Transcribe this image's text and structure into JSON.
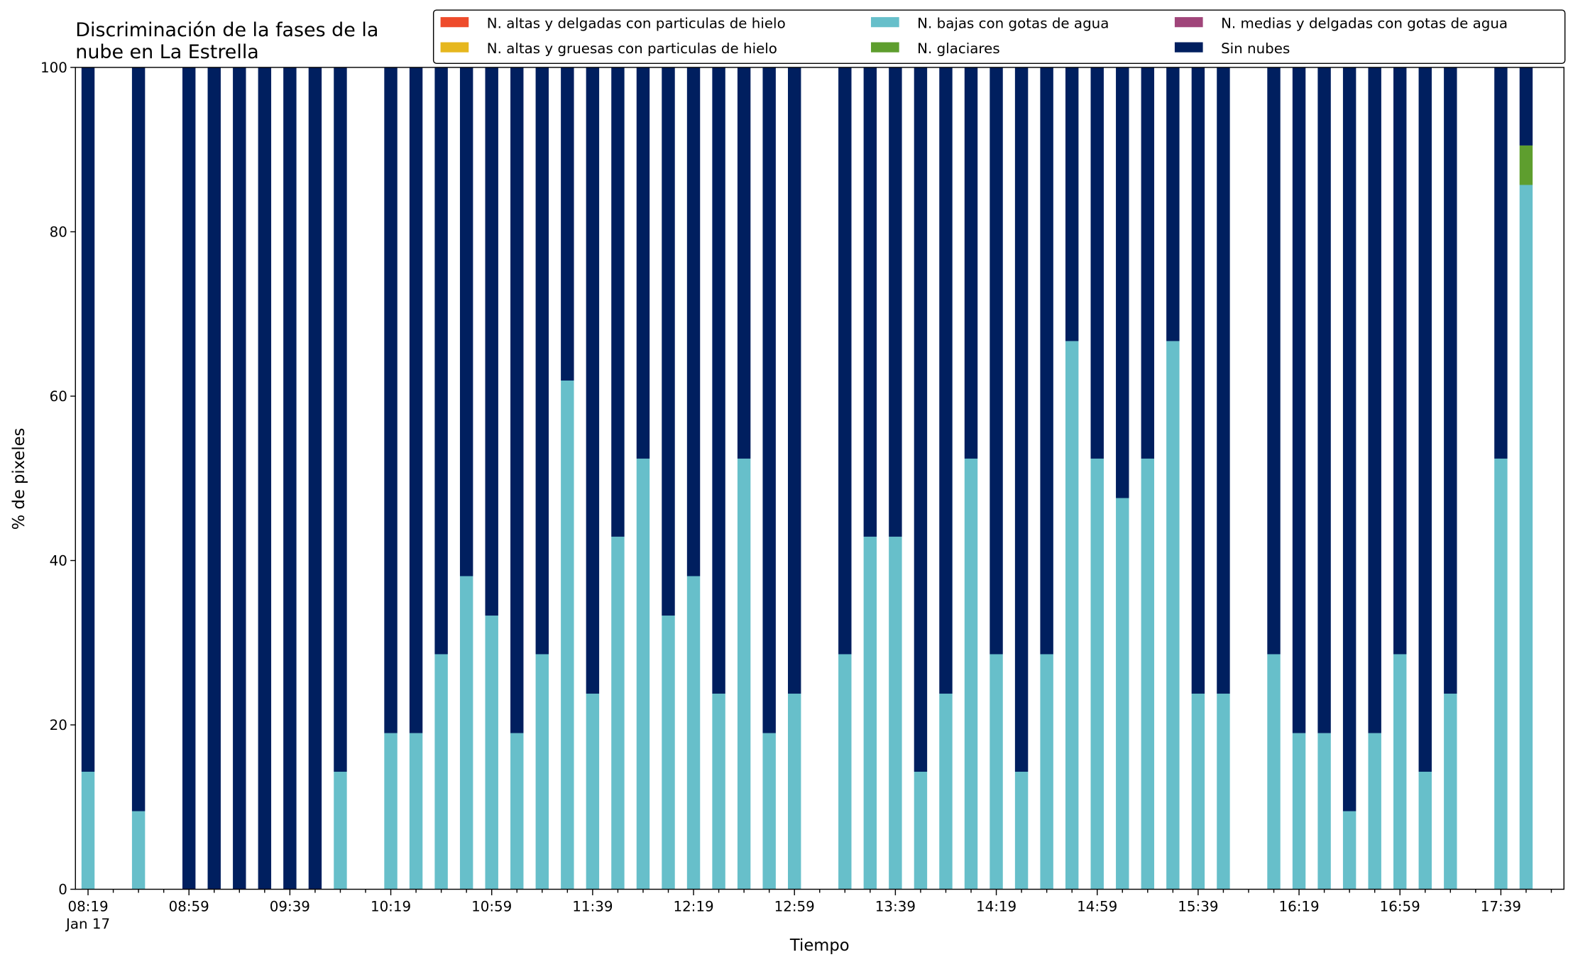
{
  "chart_data": {
    "type": "stacked_bar",
    "title": "Discriminación de la fases de la\nnube en La Estrella",
    "xlabel": "Tiempo",
    "ylabel": "% de pixeles",
    "x": [
      "08:19",
      "08:39",
      "08:59",
      "09:09",
      "09:19",
      "09:29",
      "09:39",
      "09:49",
      "09:59",
      "10:19",
      "10:29",
      "10:39",
      "10:49",
      "10:59",
      "11:09",
      "11:19",
      "11:29",
      "11:39",
      "11:49",
      "11:59",
      "12:09",
      "12:19",
      "12:29",
      "12:39",
      "12:49",
      "12:59",
      "13:19",
      "13:29",
      "13:39",
      "13:49",
      "13:59",
      "14:09",
      "14:19",
      "14:29",
      "14:39",
      "14:49",
      "14:59",
      "15:09",
      "15:19",
      "15:29",
      "15:39",
      "15:49",
      "16:09",
      "16:19",
      "16:29",
      "16:39",
      "16:49",
      "16:59",
      "17:09",
      "17:19",
      "17:39",
      "17:49"
    ],
    "series": [
      {
        "name": "N. altas y delgadas con particulas de hielo",
        "color": "#ee4b2b",
        "values": [
          0,
          0,
          0,
          0,
          0,
          0,
          0,
          0,
          0,
          0,
          0,
          0,
          0,
          0,
          0,
          0,
          0,
          0,
          0,
          0,
          0,
          0,
          0,
          0,
          0,
          0,
          0,
          0,
          0,
          0,
          0,
          0,
          0,
          0,
          0,
          0,
          0,
          0,
          0,
          0,
          0,
          0,
          0,
          0,
          0,
          0,
          0,
          0,
          0,
          0,
          0,
          0
        ]
      },
      {
        "name": "N. altas y gruesas con particulas de hielo",
        "color": "#e6b71e",
        "values": [
          0,
          0,
          0,
          0,
          0,
          0,
          0,
          0,
          0,
          0,
          0,
          0,
          0,
          0,
          0,
          0,
          0,
          0,
          0,
          0,
          0,
          0,
          0,
          0,
          0,
          0,
          0,
          0,
          0,
          0,
          0,
          0,
          0,
          0,
          0,
          0,
          0,
          0,
          0,
          0,
          0,
          0,
          0,
          0,
          0,
          0,
          0,
          0,
          0,
          0,
          0,
          0
        ]
      },
      {
        "name": "N. bajas con gotas de agua",
        "color": "#67bfca",
        "values": [
          14.3,
          9.5,
          0,
          0,
          0,
          0,
          0,
          0,
          14.3,
          19,
          19,
          28.6,
          38.1,
          33.3,
          19,
          28.6,
          61.9,
          23.8,
          42.9,
          52.4,
          33.3,
          38.1,
          23.8,
          52.4,
          19,
          23.8,
          28.6,
          42.9,
          42.9,
          14.3,
          23.8,
          52.4,
          28.6,
          14.3,
          28.6,
          66.7,
          52.4,
          47.6,
          52.4,
          66.7,
          23.8,
          23.8,
          28.6,
          19,
          19,
          9.5,
          19,
          28.6,
          14.3,
          23.8,
          52.4,
          85.7
        ]
      },
      {
        "name": "N. glaciares",
        "color": "#5e9e2e",
        "values": [
          0,
          0,
          0,
          0,
          0,
          0,
          0,
          0,
          0,
          0,
          0,
          0,
          0,
          0,
          0,
          0,
          0,
          0,
          0,
          0,
          0,
          0,
          0,
          0,
          0,
          0,
          0,
          0,
          0,
          0,
          0,
          0,
          0,
          0,
          0,
          0,
          0,
          0,
          0,
          0,
          0,
          0,
          0,
          0,
          0,
          0,
          0,
          0,
          0,
          0,
          0,
          4.8
        ]
      },
      {
        "name": "N. medias y delgadas con gotas de agua",
        "color": "#a0457a",
        "values": [
          0,
          0,
          0,
          0,
          0,
          0,
          0,
          0,
          0,
          0,
          0,
          0,
          0,
          0,
          0,
          0,
          0,
          0,
          0,
          0,
          0,
          0,
          0,
          0,
          0,
          0,
          0,
          0,
          0,
          0,
          0,
          0,
          0,
          0,
          0,
          0,
          0,
          0,
          0,
          0,
          0,
          0,
          0,
          0,
          0,
          0,
          0,
          0,
          0,
          0,
          0,
          0
        ]
      },
      {
        "name": "Sin nubes",
        "color": "#001f5f",
        "values": [
          85.7,
          90.5,
          100,
          100,
          100,
          100,
          100,
          100,
          85.7,
          81,
          81,
          71.4,
          61.9,
          66.7,
          81,
          71.4,
          38.1,
          76.2,
          57.1,
          47.6,
          66.7,
          61.9,
          76.2,
          47.6,
          81,
          76.2,
          71.4,
          57.1,
          57.1,
          85.7,
          76.2,
          47.6,
          71.4,
          85.7,
          71.4,
          33.3,
          47.6,
          52.4,
          47.6,
          33.3,
          76.2,
          76.2,
          71.4,
          81,
          81,
          90.5,
          81,
          71.4,
          85.7,
          76.2,
          47.6,
          9.5
        ]
      }
    ],
    "stack_order": [
      2,
      3,
      0,
      1,
      4,
      5
    ],
    "xlim": [
      "08:14",
      "18:04"
    ],
    "xticks": [
      "08:19",
      "08:59",
      "09:39",
      "10:19",
      "10:59",
      "11:39",
      "12:19",
      "12:59",
      "13:39",
      "14:19",
      "14:59",
      "15:39",
      "16:19",
      "16:59",
      "17:39"
    ],
    "xtick_sublabel": "Jan 17",
    "xticks_minor": [
      "08:29",
      "08:39",
      "08:49",
      "09:09",
      "09:19",
      "09:29",
      "09:49",
      "09:59",
      "10:09",
      "10:29",
      "10:39",
      "10:49",
      "11:09",
      "11:19",
      "11:29",
      "11:49",
      "11:59",
      "12:09",
      "12:29",
      "12:39",
      "12:49",
      "13:09",
      "13:19",
      "13:29",
      "13:49",
      "13:59",
      "14:09",
      "14:29",
      "14:39",
      "14:49",
      "15:09",
      "15:19",
      "15:29",
      "15:49",
      "15:59",
      "16:09",
      "16:29",
      "16:39",
      "16:49",
      "17:09",
      "17:19",
      "17:29",
      "17:49",
      "17:59"
    ],
    "ylim": [
      0,
      100
    ],
    "yticks": [
      0,
      20,
      40,
      60,
      80,
      100
    ],
    "legend": "upper right",
    "legend_columns": 3
  }
}
